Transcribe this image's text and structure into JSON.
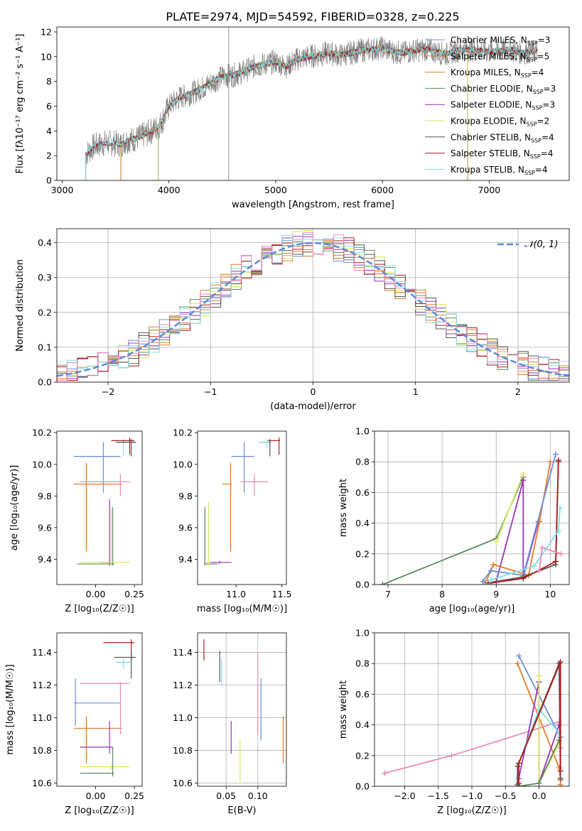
{
  "figure_title": "PLATE=2974, MJD=54592, FIBERID=0328, z=0.225",
  "colors": {
    "Chabrier MILES": "#6a8fd8",
    "Salpeter MILES": "#e57a2a",
    "Kroupa MILES": "#c9862a",
    "Chabrier ELODIE": "#5f8a5f",
    "Salpeter ELODIE": "#9c34b8",
    "Kroupa ELODIE": "#d6e85a",
    "Chabrier STELIB": "#555555",
    "Salpeter STELIB": "#b01c1c",
    "Kroupa STELIB": "#7fe0e6",
    "pink": "#e88bb8",
    "normal": "#5b8bd6"
  },
  "chart_data": [
    {
      "id": "spectrum",
      "type": "line",
      "title": "",
      "xlabel": "wavelength [Angstrom, rest frame]",
      "ylabel": "Flux [fλ10⁻¹⁷ erg cm⁻² s⁻¹ A⁻¹]",
      "xlim": [
        2950,
        7750
      ],
      "ylim": [
        0,
        12.4
      ],
      "xticks": [
        3000,
        4000,
        5000,
        6000,
        7000
      ],
      "yticks": [
        0,
        2,
        4,
        6,
        8,
        10,
        12
      ],
      "legend_position": "top-right",
      "x": [
        3220,
        3300,
        3400,
        3500,
        3550,
        3600,
        3700,
        3800,
        3900,
        3950,
        4000,
        4100,
        4200,
        4300,
        4400,
        4500,
        4600,
        4700,
        4800,
        4900,
        5000,
        5100,
        5200,
        5300,
        5400,
        5500,
        5600,
        5700,
        5800,
        5900,
        6000,
        6100,
        6200,
        6300,
        6400,
        6500,
        6600,
        6700,
        6800,
        6900,
        7000,
        7100,
        7200,
        7300,
        7400,
        7450
      ],
      "series": [
        {
          "name": "Chabrier MILES, N_SSP=3",
          "color_key": "Chabrier MILES",
          "starts_at": 3550,
          "ends_at": 7450
        },
        {
          "name": "Salpeter MILES, N_SSP=5",
          "color_key": "Salpeter MILES",
          "starts_at": 3550,
          "ends_at": 6800
        },
        {
          "name": "Kroupa MILES, N_SSP=4",
          "color_key": "Kroupa MILES",
          "starts_at": 3550,
          "ends_at": 7450
        },
        {
          "name": "Chabrier ELODIE, N_SSP=3",
          "color_key": "Chabrier ELODIE",
          "starts_at": 3900,
          "ends_at": 6800
        },
        {
          "name": "Salpeter ELODIE, N_SSP=3",
          "color_key": "Salpeter ELODIE",
          "starts_at": 3900,
          "ends_at": 6800
        },
        {
          "name": "Kroupa ELODIE, N_SSP=2",
          "color_key": "Kroupa ELODIE",
          "starts_at": 3900,
          "ends_at": 6800
        },
        {
          "name": "Chabrier STELIB, N_SSP=4",
          "color_key": "Chabrier STELIB",
          "starts_at": 3220,
          "ends_at": 7450
        },
        {
          "name": "Salpeter STELIB, N_SSP=4",
          "color_key": "Salpeter STELIB",
          "starts_at": 3220,
          "ends_at": 7450
        },
        {
          "name": "Kroupa STELIB, N_SSP=4",
          "color_key": "Kroupa STELIB",
          "starts_at": 3220,
          "ends_at": 7450
        }
      ],
      "model_flux": [
        2.1,
        2.8,
        3.0,
        3.0,
        2.9,
        3.2,
        3.4,
        3.8,
        4.3,
        5.0,
        6.0,
        6.7,
        7.0,
        7.4,
        7.9,
        8.4,
        8.5,
        8.8,
        9.2,
        9.4,
        9.6,
        9.2,
        9.8,
        10.0,
        10.1,
        10.3,
        10.1,
        10.3,
        10.5,
        10.6,
        10.7,
        10.4,
        10.3,
        10.5,
        10.6,
        10.4,
        10.2,
        10.5,
        10.6,
        10.5,
        10.4,
        10.5,
        10.6,
        10.3,
        10.4,
        10.5
      ],
      "data_line": {
        "color": "#808080"
      }
    },
    {
      "id": "residuals",
      "type": "histogram",
      "xlabel": "(data-model)/error",
      "ylabel": "Normed distribution",
      "xlim": [
        -2.5,
        2.5
      ],
      "ylim": [
        0,
        0.44
      ],
      "xticks": [
        -2,
        -1,
        0,
        1,
        2
      ],
      "yticks": [
        0.0,
        0.1,
        0.2,
        0.3,
        0.4
      ],
      "grid": true,
      "legend": [
        {
          "name": "𝒩(0, 1)",
          "style": "dashed"
        }
      ],
      "legend_position": "top-right",
      "bin_edges_start": -2.5,
      "bin_width": 0.1,
      "n_bins": 50
    },
    {
      "id": "age-vs-Z",
      "type": "errorbar",
      "xlabel": "Z [log₁₀(Z/Z☉)]",
      "ylabel": "age  [log₁₀(age/yr)]",
      "xlim": [
        -0.25,
        0.3
      ],
      "ylim": [
        9.24,
        10.21
      ],
      "xticks": [
        0.0,
        0.25
      ],
      "yticks": [
        9.4,
        9.6,
        9.8,
        10.0,
        10.2
      ],
      "points": [
        {
          "c": "Chabrier MILES",
          "x": 0.05,
          "xlo": -0.14,
          "xhi": 0.16,
          "y": 10.05,
          "ylo": 9.82,
          "yhi": 10.14
        },
        {
          "c": "Salpeter MILES",
          "x": -0.06,
          "xlo": -0.14,
          "xhi": 0.17,
          "y": 9.875,
          "ylo": 9.45,
          "yhi": 10.01
        },
        {
          "c": "Kroupa STELIB",
          "x": 0.18,
          "xlo": 0.14,
          "xhi": 0.26,
          "y": 10.14,
          "ylo": 10.06,
          "yhi": 10.16
        },
        {
          "c": "Chabrier STELIB",
          "x": 0.23,
          "xlo": 0.13,
          "xhi": 0.26,
          "y": 10.14,
          "ylo": 10.05,
          "yhi": 10.16
        },
        {
          "c": "Salpeter STELIB",
          "x": 0.22,
          "xlo": 0.1,
          "xhi": 0.25,
          "y": 10.15,
          "ylo": 10.06,
          "yhi": 10.17
        },
        {
          "c": "pink",
          "x": 0.16,
          "xlo": -0.1,
          "xhi": 0.22,
          "y": 9.89,
          "ylo": 9.8,
          "yhi": 9.94
        },
        {
          "c": "Salpeter ELODIE",
          "x": 0.09,
          "xlo": 0.02,
          "xhi": 0.11,
          "y": 9.38,
          "ylo": 9.36,
          "yhi": 9.78
        },
        {
          "c": "Chabrier ELODIE",
          "x": 0.11,
          "xlo": -0.12,
          "xhi": 0.12,
          "y": 9.37,
          "ylo": 9.36,
          "yhi": 9.73
        },
        {
          "c": "Kroupa ELODIE",
          "x": 0.1,
          "xlo": -0.1,
          "xhi": 0.22,
          "y": 9.38,
          "ylo": 9.36,
          "yhi": 9.72
        }
      ]
    },
    {
      "id": "age-vs-mass",
      "type": "errorbar",
      "xlabel": "mass [log₁₀(M/M☉)]",
      "ylabel": "",
      "xlim": [
        10.58,
        11.55
      ],
      "ylim": [
        9.24,
        10.21
      ],
      "xticks": [
        11.0,
        11.5
      ],
      "yticks": [
        9.4,
        9.6,
        9.8,
        10.0,
        10.2
      ],
      "points": [
        {
          "c": "Chabrier MILES",
          "x": 11.09,
          "xlo": 10.95,
          "xhi": 11.2,
          "y": 10.05,
          "ylo": 9.82,
          "yhi": 10.14
        },
        {
          "c": "Salpeter MILES",
          "x": 10.94,
          "xlo": 10.85,
          "xhi": 10.95,
          "y": 9.875,
          "ylo": 9.45,
          "yhi": 10.01
        },
        {
          "c": "Chabrier STELIB",
          "x": 11.37,
          "xlo": 11.25,
          "xhi": 11.38,
          "y": 10.14,
          "ylo": 10.05,
          "yhi": 10.16
        },
        {
          "c": "Salpeter STELIB",
          "x": 11.47,
          "xlo": 11.35,
          "xhi": 11.48,
          "y": 10.15,
          "ylo": 10.06,
          "yhi": 10.17
        },
        {
          "c": "Kroupa STELIB",
          "x": 11.34,
          "xlo": 11.25,
          "xhi": 11.36,
          "y": 10.14,
          "ylo": 10.1,
          "yhi": 10.16
        },
        {
          "c": "pink",
          "x": 11.2,
          "xlo": 11.05,
          "xhi": 11.35,
          "y": 9.89,
          "ylo": 9.8,
          "yhi": 9.94
        },
        {
          "c": "Salpeter ELODIE",
          "x": 10.82,
          "xlo": 10.7,
          "xhi": 10.95,
          "y": 9.38,
          "ylo": 9.37,
          "yhi": 9.39
        },
        {
          "c": "Chabrier ELODIE",
          "x": 10.66,
          "xlo": 10.65,
          "xhi": 10.8,
          "y": 9.37,
          "ylo": 9.36,
          "yhi": 9.73
        },
        {
          "c": "Kroupa ELODIE",
          "x": 10.7,
          "xlo": 10.67,
          "xhi": 10.72,
          "y": 9.38,
          "ylo": 9.36,
          "yhi": 9.76
        }
      ]
    },
    {
      "id": "weight-vs-age",
      "type": "line",
      "xlabel": "age  [log₁₀(age/yr)]",
      "ylabel": "mass weight",
      "xlim": [
        6.75,
        10.35
      ],
      "ylim": [
        0,
        1
      ],
      "xticks": [
        7,
        8,
        9,
        10
      ],
      "yticks": [
        0.0,
        0.2,
        0.4,
        0.6,
        0.8,
        1.0
      ],
      "grid": true,
      "series": [
        {
          "c": "Chabrier ELODIE",
          "x": [
            6.9,
            9.0,
            9.5
          ],
          "y": [
            0.0,
            0.3,
            0.7
          ]
        },
        {
          "c": "Kroupa ELODIE",
          "x": [
            9.0,
            9.5
          ],
          "y": [
            0.28,
            0.72
          ]
        },
        {
          "c": "Salpeter ELODIE",
          "x": [
            9.0,
            9.5,
            9.5,
            9.78
          ],
          "y": [
            0.02,
            0.68,
            0.05,
            0.41
          ]
        },
        {
          "c": "Salpeter MILES",
          "x": [
            8.8,
            8.95,
            9.6,
            9.8,
            10.0
          ],
          "y": [
            0.01,
            0.13,
            0.06,
            0.41,
            0.8
          ]
        },
        {
          "c": "Chabrier MILES",
          "x": [
            8.75,
            8.9,
            9.5,
            10.1
          ],
          "y": [
            0.02,
            0.09,
            0.06,
            0.85
          ]
        },
        {
          "c": "Chabrier STELIB",
          "x": [
            8.85,
            9.5,
            10.1,
            10.15
          ],
          "y": [
            0.01,
            0.05,
            0.13,
            0.8
          ]
        },
        {
          "c": "Salpeter STELIB",
          "x": [
            8.9,
            9.5,
            10.1,
            10.15
          ],
          "y": [
            0.01,
            0.04,
            0.15,
            0.81
          ]
        },
        {
          "c": "Kroupa STELIB",
          "x": [
            8.9,
            9.7,
            10.15,
            10.18
          ],
          "y": [
            0.03,
            0.12,
            0.35,
            0.5
          ]
        },
        {
          "c": "pink",
          "x": [
            9.8,
            9.85,
            10.2
          ],
          "y": [
            0.09,
            0.24,
            0.2
          ]
        }
      ]
    },
    {
      "id": "mass-vs-Z",
      "type": "errorbar",
      "xlabel": "Z [log₁₀(Z/Z☉)]",
      "ylabel": "mass [log₁₀(M/M☉)]",
      "xlim": [
        -0.25,
        0.3
      ],
      "ylim": [
        10.58,
        11.52
      ],
      "xticks": [
        0.0,
        0.25
      ],
      "yticks": [
        10.6,
        10.8,
        11.0,
        11.2,
        11.4
      ],
      "points": [
        {
          "c": "Chabrier MILES",
          "x": -0.13,
          "xlo": -0.14,
          "xhi": 0.16,
          "y": 11.09,
          "ylo": 10.95,
          "yhi": 11.24
        },
        {
          "c": "Salpeter MILES",
          "x": -0.06,
          "xlo": -0.14,
          "xhi": 0.17,
          "y": 10.935,
          "ylo": 10.72,
          "yhi": 11.01
        },
        {
          "c": "Salpeter STELIB",
          "x": 0.23,
          "xlo": 0.05,
          "xhi": 0.25,
          "y": 11.46,
          "ylo": 11.35,
          "yhi": 11.48
        },
        {
          "c": "Chabrier STELIB",
          "x": 0.23,
          "xlo": 0.12,
          "xhi": 0.26,
          "y": 11.37,
          "ylo": 11.24,
          "yhi": 11.41
        },
        {
          "c": "Kroupa STELIB",
          "x": 0.18,
          "xlo": 0.13,
          "xhi": 0.23,
          "y": 11.34,
          "ylo": 11.3,
          "yhi": 11.36
        },
        {
          "c": "pink",
          "x": 0.16,
          "xlo": -0.1,
          "xhi": 0.22,
          "y": 11.21,
          "ylo": 10.9,
          "yhi": 11.22
        },
        {
          "c": "Salpeter ELODIE",
          "x": 0.09,
          "xlo": -0.1,
          "xhi": 0.11,
          "y": 10.82,
          "ylo": 10.78,
          "yhi": 10.98
        },
        {
          "c": "Kroupa ELODIE",
          "x": 0.1,
          "xlo": -0.1,
          "xhi": 0.22,
          "y": 10.7,
          "ylo": 10.68,
          "yhi": 10.72
        },
        {
          "c": "Chabrier ELODIE",
          "x": 0.11,
          "xlo": -0.1,
          "xhi": 0.12,
          "y": 10.66,
          "ylo": 10.64,
          "yhi": 10.82
        }
      ]
    },
    {
      "id": "mass-vs-EBV",
      "type": "errorbar",
      "xlabel": "E(B-V)",
      "ylabel": "",
      "xlim": [
        0.005,
        0.145
      ],
      "ylim": [
        10.58,
        11.52
      ],
      "xticks": [
        0.05,
        0.1
      ],
      "yticks": [
        10.6,
        10.8,
        11.0,
        11.2,
        11.4
      ],
      "grid": true,
      "points": [
        {
          "c": "Salpeter STELIB",
          "x": 0.015,
          "ylo": 11.35,
          "yhi": 11.48
        },
        {
          "c": "Chabrier STELIB",
          "x": 0.04,
          "ylo": 11.22,
          "yhi": 11.41
        },
        {
          "c": "Kroupa STELIB",
          "x": 0.043,
          "ylo": 11.2,
          "yhi": 11.36
        },
        {
          "c": "Salpeter ELODIE",
          "x": 0.058,
          "ylo": 10.78,
          "yhi": 10.98
        },
        {
          "c": "Kroupa ELODIE",
          "x": 0.072,
          "ylo": 10.6,
          "yhi": 10.87
        },
        {
          "c": "pink",
          "x": 0.1,
          "ylo": 10.9,
          "yhi": 11.4
        },
        {
          "c": "Chabrier MILES",
          "x": 0.105,
          "ylo": 10.86,
          "yhi": 11.24
        },
        {
          "c": "Salpeter MILES",
          "x": 0.14,
          "ylo": 10.72,
          "yhi": 11.01
        }
      ]
    },
    {
      "id": "weight-vs-Z",
      "type": "line",
      "xlabel": "Z [log₁₀(Z/Z☉)]",
      "ylabel": "mass weight",
      "xlim": [
        -2.45,
        0.45
      ],
      "ylim": [
        0,
        1
      ],
      "xticks": [
        -2.0,
        -1.5,
        -1.0,
        -0.5,
        0.0
      ],
      "yticks": [
        0.0,
        0.2,
        0.4,
        0.6,
        0.8,
        1.0
      ],
      "grid": true,
      "series": [
        {
          "c": "pink",
          "x": [
            -2.3,
            -1.3,
            0.3,
            0.32
          ],
          "y": [
            0.085,
            0.2,
            0.42,
            0.25
          ]
        },
        {
          "c": "Chabrier MILES",
          "x": [
            -0.3,
            0.32,
            0.32
          ],
          "y": [
            0.85,
            0.32,
            0.05
          ]
        },
        {
          "c": "Salpeter MILES",
          "x": [
            -0.32,
            0.3,
            0.32,
            0.32
          ],
          "y": [
            0.8,
            0.12,
            0.04,
            0.01
          ]
        },
        {
          "c": "Salpeter ELODIE",
          "x": [
            -0.3,
            0.0,
            0.0,
            0.3
          ],
          "y": [
            0.05,
            0.68,
            0.02,
            0.4
          ]
        },
        {
          "c": "Kroupa ELODIE",
          "x": [
            0.0,
            0.0,
            0.3
          ],
          "y": [
            0.72,
            0.02,
            0.28
          ]
        },
        {
          "c": "Kroupa STELIB",
          "x": [
            -0.3,
            0.0,
            0.3
          ],
          "y": [
            0.15,
            0.5,
            0.35
          ]
        },
        {
          "c": "Chabrier ELODIE",
          "x": [
            -0.3,
            0.0,
            0.3
          ],
          "y": [
            0.0,
            0.02,
            0.3
          ]
        },
        {
          "c": "Chabrier STELIB",
          "x": [
            -0.32,
            -0.32,
            0.3,
            0.32
          ],
          "y": [
            0.01,
            0.13,
            0.8,
            0.05
          ]
        },
        {
          "c": "Salpeter STELIB",
          "x": [
            -0.3,
            -0.3,
            0.32,
            0.32
          ],
          "y": [
            0.02,
            0.15,
            0.81,
            0.1
          ]
        }
      ]
    }
  ]
}
